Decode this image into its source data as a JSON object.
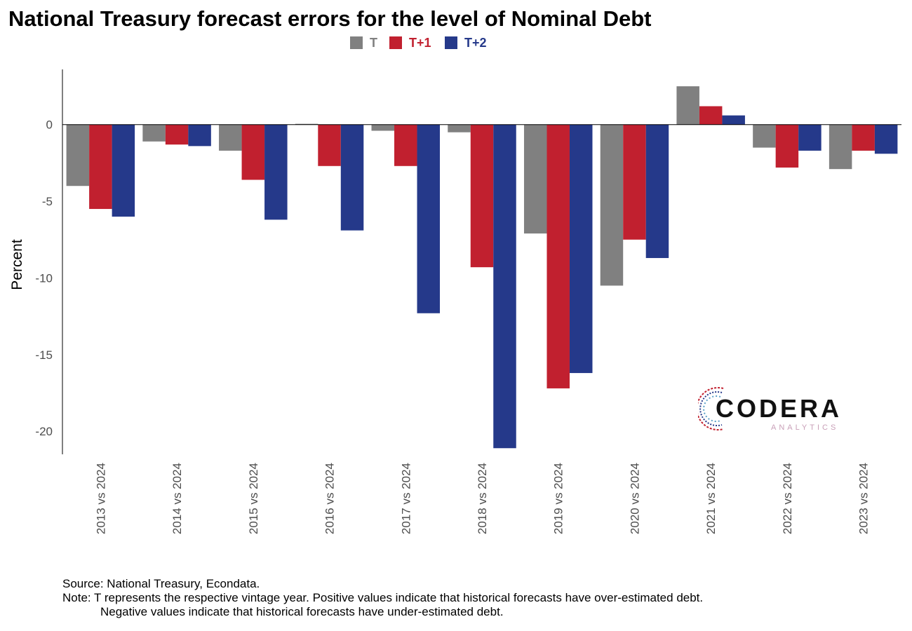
{
  "title": "National Treasury forecast errors for the level of Nominal Debt",
  "legend": [
    {
      "label": "T",
      "color": "#808080"
    },
    {
      "label": "T+1",
      "color": "#c1202f"
    },
    {
      "label": "T+2",
      "color": "#25398a"
    }
  ],
  "logo": {
    "word": "CODERA",
    "sub": "ANALYTICS"
  },
  "footnote": {
    "source": "Source: National Treasury, Econdata.",
    "note_1": "Note: T represents the respective vintage year. Positive values indicate that historical forecasts have over-estimated debt.",
    "note_2": "Negative values indicate that historical forecasts have under-estimated debt."
  },
  "chart_data": {
    "type": "bar",
    "title": "National Treasury forecast errors for the level of Nominal Debt",
    "xlabel": "",
    "ylabel": "Percent",
    "ylim": [
      -21.5,
      3.6
    ],
    "yticks": [
      0,
      -5,
      -10,
      -15,
      -20
    ],
    "grid": false,
    "legend_position": "top",
    "categories": [
      "2013 vs 2024",
      "2014 vs 2024",
      "2015 vs 2024",
      "2016 vs 2024",
      "2017 vs 2024",
      "2018 vs 2024",
      "2019 vs 2024",
      "2020 vs 2024",
      "2021 vs 2024",
      "2022 vs 2024",
      "2023 vs 2024"
    ],
    "series": [
      {
        "name": "T",
        "color": "#808080",
        "values": [
          -4.0,
          -1.1,
          -1.7,
          0.05,
          -0.4,
          -0.5,
          -7.1,
          -10.5,
          2.5,
          -1.5,
          -2.9
        ]
      },
      {
        "name": "T+1",
        "color": "#c1202f",
        "values": [
          -5.5,
          -1.3,
          -3.6,
          -2.7,
          -2.7,
          -9.3,
          -17.2,
          -7.5,
          1.2,
          -2.8,
          -1.7
        ]
      },
      {
        "name": "T+2",
        "color": "#25398a",
        "values": [
          -6.0,
          -1.4,
          -6.2,
          -6.9,
          -12.3,
          -21.1,
          -16.2,
          -8.7,
          0.6,
          -1.7,
          -1.9
        ]
      }
    ]
  }
}
